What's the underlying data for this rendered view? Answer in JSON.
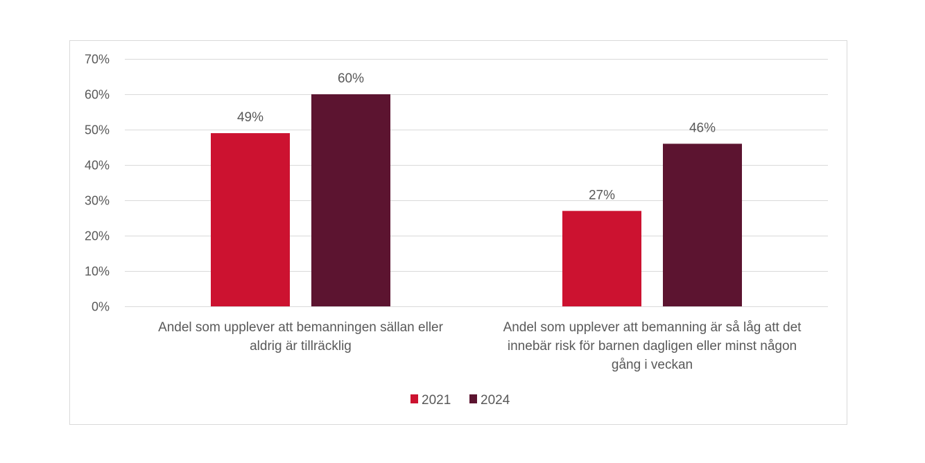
{
  "chart_data": {
    "type": "bar",
    "title": "",
    "xlabel": "",
    "ylabel": "",
    "ylim": [
      0,
      70
    ],
    "yticks": [
      0,
      10,
      20,
      30,
      40,
      50,
      60,
      70
    ],
    "ytick_labels": [
      "0%",
      "10%",
      "20%",
      "30%",
      "40%",
      "50%",
      "60%",
      "70%"
    ],
    "grid": true,
    "legend_position": "bottom",
    "categories": [
      [
        "Andel som upplever att bemanningen sällan eller",
        "aldrig är tillräcklig"
      ],
      [
        "Andel som upplever att bemanning är så låg att det",
        "innebär risk för barnen dagligen eller minst någon",
        "gång i veckan"
      ]
    ],
    "series": [
      {
        "name": "2021",
        "values": [
          49,
          27
        ],
        "labels": [
          "49%",
          "27%"
        ],
        "color": "#CC1230"
      },
      {
        "name": "2024",
        "values": [
          60,
          46
        ],
        "labels": [
          "60%",
          "46%"
        ],
        "color": "#5C1430"
      }
    ]
  }
}
